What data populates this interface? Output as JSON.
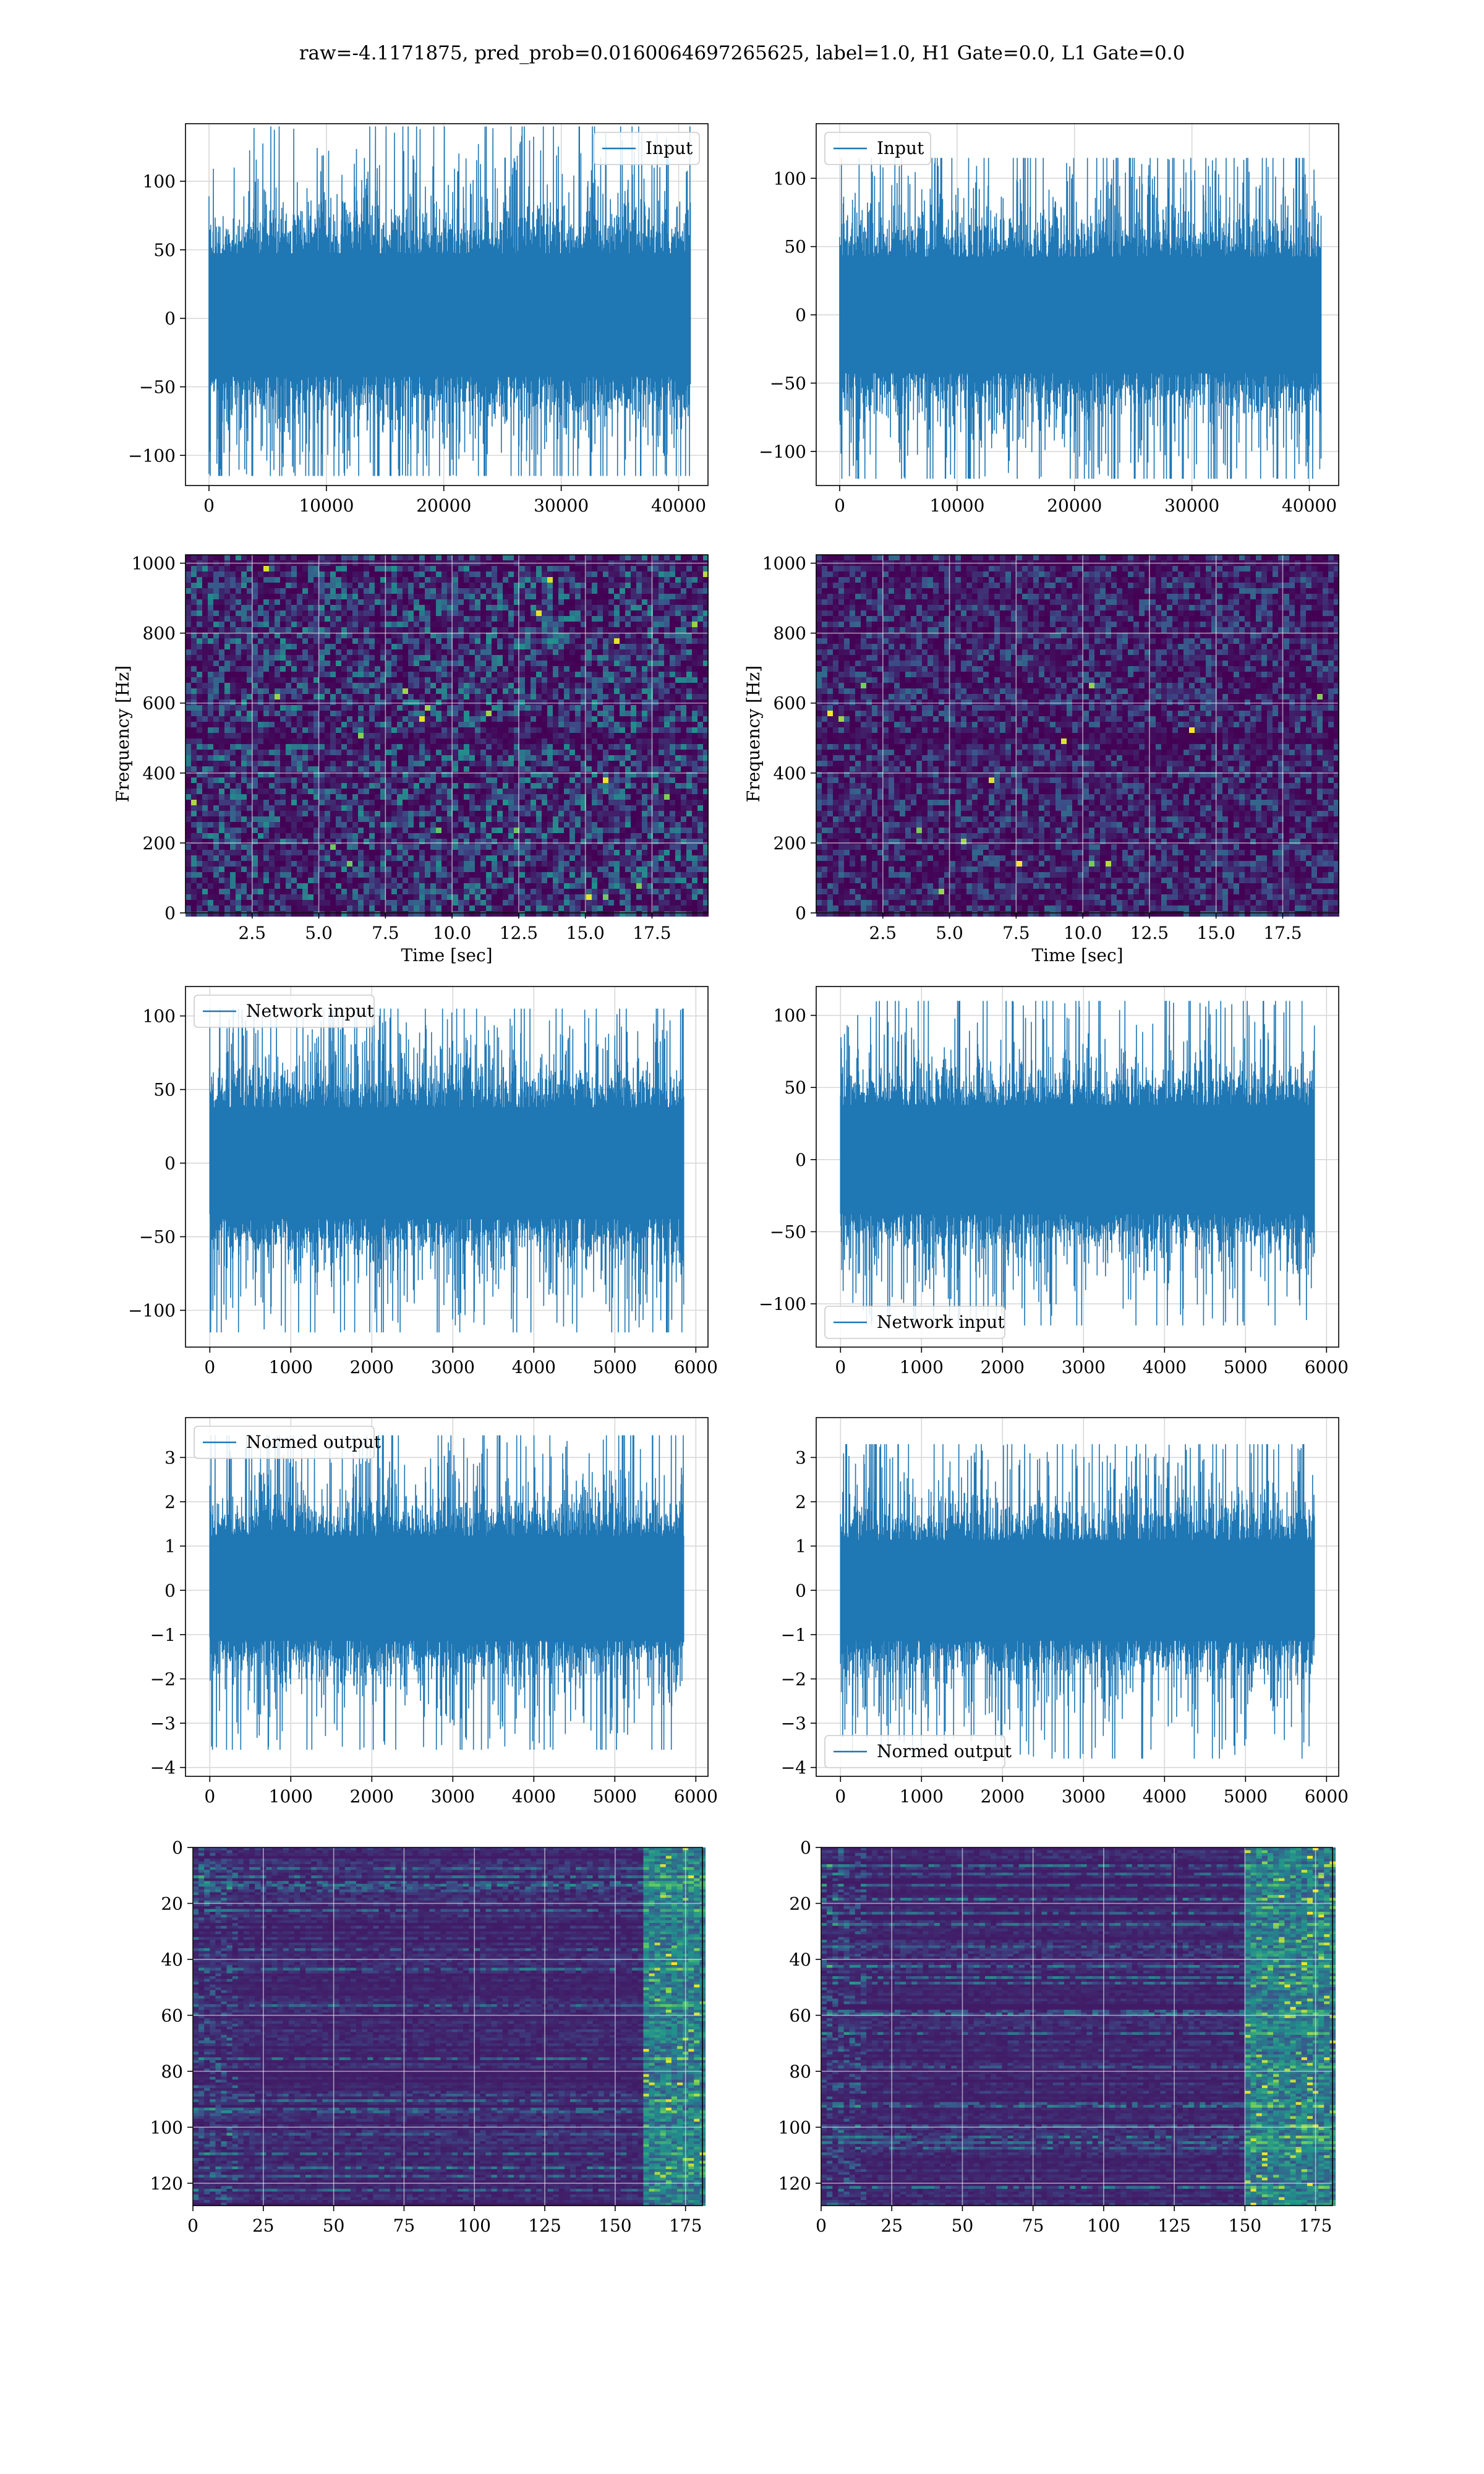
{
  "figure": {
    "title": "raw=-4.1171875, pred_prob=0.0160064697265625, label=1.0, H1 Gate=0.0, L1 Gate=0.0"
  },
  "chart_data": [
    {
      "id": "h1-input",
      "type": "line",
      "series": [
        {
          "name": "Input",
          "color": "#1f77b4"
        }
      ],
      "legend": "top-right",
      "xlim": [
        -2000,
        42500
      ],
      "ylim": [
        -122,
        142
      ],
      "xticks": [
        0,
        10000,
        20000,
        30000,
        40000
      ],
      "yticks": [
        -100,
        -50,
        0,
        50,
        100
      ],
      "band": {
        "x_start": 0,
        "x_end": 41000,
        "core": [
          -45,
          50
        ],
        "spikes": [
          -115,
          140
        ]
      },
      "grid": true
    },
    {
      "id": "l1-input",
      "type": "line",
      "series": [
        {
          "name": "Input",
          "color": "#1f77b4"
        }
      ],
      "legend": "top-left",
      "xlim": [
        -2000,
        42500
      ],
      "ylim": [
        -125,
        140
      ],
      "xticks": [
        0,
        10000,
        20000,
        30000,
        40000
      ],
      "yticks": [
        -100,
        -50,
        0,
        50,
        100
      ],
      "band": {
        "x_start": 0,
        "x_end": 41000,
        "core": [
          -45,
          45
        ],
        "spikes": [
          -120,
          115
        ]
      },
      "grid": true
    },
    {
      "id": "h1-spectrogram",
      "type": "heatmap",
      "xlabel": "Time [sec]",
      "ylabel": "Frequency [Hz]",
      "xlim": [
        0,
        19.6
      ],
      "ylim": [
        0,
        1024
      ],
      "xticks": [
        2.5,
        5.0,
        7.5,
        10.0,
        12.5,
        15.0,
        17.5
      ],
      "xtick_labels": [
        "2.5",
        "5.0",
        "7.5",
        "10.0",
        "12.5",
        "15.0",
        "17.5"
      ],
      "yticks": [
        0,
        200,
        400,
        600,
        800,
        1000
      ],
      "colormap": "viridis",
      "grid": true,
      "notes": "noise texture; dark horizontal band near 500 Hz and 1000 Hz; bright speckles"
    },
    {
      "id": "l1-spectrogram",
      "type": "heatmap",
      "xlabel": "Time [sec]",
      "ylabel": "Frequency [Hz]",
      "xlim": [
        0,
        19.6
      ],
      "ylim": [
        0,
        1024
      ],
      "xticks": [
        2.5,
        5.0,
        7.5,
        10.0,
        12.5,
        15.0,
        17.5
      ],
      "xtick_labels": [
        "2.5",
        "5.0",
        "7.5",
        "10.0",
        "12.5",
        "15.0",
        "17.5"
      ],
      "yticks": [
        0,
        200,
        400,
        600,
        800,
        1000
      ],
      "colormap": "viridis",
      "grid": true,
      "notes": "darker noise texture, few speckles"
    },
    {
      "id": "h1-network-input",
      "type": "line",
      "series": [
        {
          "name": "Network input",
          "color": "#1f77b4"
        }
      ],
      "legend": "top-left",
      "xlim": [
        -300,
        6150
      ],
      "ylim": [
        -125,
        120
      ],
      "xticks": [
        0,
        1000,
        2000,
        3000,
        4000,
        5000,
        6000
      ],
      "yticks": [
        -100,
        -50,
        0,
        50,
        100
      ],
      "band": {
        "x_start": 0,
        "x_end": 5850,
        "core": [
          -40,
          40
        ],
        "spikes": [
          -115,
          105
        ]
      },
      "grid": true
    },
    {
      "id": "l1-network-input",
      "type": "line",
      "series": [
        {
          "name": "Network input",
          "color": "#1f77b4"
        }
      ],
      "legend": "bottom-left",
      "xlim": [
        -300,
        6150
      ],
      "ylim": [
        -130,
        120
      ],
      "xticks": [
        0,
        1000,
        2000,
        3000,
        4000,
        5000,
        6000
      ],
      "yticks": [
        -100,
        -50,
        0,
        50,
        100
      ],
      "band": {
        "x_start": 0,
        "x_end": 5850,
        "core": [
          -40,
          40
        ],
        "spikes": [
          -115,
          110
        ]
      },
      "grid": true
    },
    {
      "id": "h1-normed-output",
      "type": "line",
      "series": [
        {
          "name": "Normed output",
          "color": "#1f77b4"
        }
      ],
      "legend": "top-left",
      "xlim": [
        -300,
        6150
      ],
      "ylim": [
        -4.2,
        3.9
      ],
      "xticks": [
        0,
        1000,
        2000,
        3000,
        4000,
        5000,
        6000
      ],
      "yticks": [
        -4,
        -3,
        -2,
        -1,
        0,
        1,
        2,
        3
      ],
      "band": {
        "x_start": 0,
        "x_end": 5850,
        "core": [
          -1.2,
          1.3
        ],
        "spikes": [
          -3.6,
          3.5
        ]
      },
      "grid": true
    },
    {
      "id": "l1-normed-output",
      "type": "line",
      "series": [
        {
          "name": "Normed output",
          "color": "#1f77b4"
        }
      ],
      "legend": "bottom-left",
      "xlim": [
        -300,
        6150
      ],
      "ylim": [
        -4.2,
        3.9
      ],
      "xticks": [
        0,
        1000,
        2000,
        3000,
        4000,
        5000,
        6000
      ],
      "yticks": [
        -4,
        -3,
        -2,
        -1,
        0,
        1,
        2,
        3
      ],
      "band": {
        "x_start": 0,
        "x_end": 5850,
        "core": [
          -1.2,
          1.2
        ],
        "spikes": [
          -3.8,
          3.3
        ]
      },
      "grid": true
    },
    {
      "id": "h1-feature-map",
      "type": "heatmap",
      "xlim": [
        0,
        181
      ],
      "ylim": [
        128,
        0
      ],
      "xticks": [
        0,
        25,
        50,
        75,
        100,
        125,
        150,
        175
      ],
      "yticks": [
        0,
        20,
        40,
        60,
        80,
        100,
        120
      ],
      "colormap": "viridis",
      "grid": true,
      "notes": "128 channels x 181 steps; mostly dark; bright activations near x=160-180"
    },
    {
      "id": "l1-feature-map",
      "type": "heatmap",
      "xlim": [
        0,
        181
      ],
      "ylim": [
        128,
        0
      ],
      "xticks": [
        0,
        25,
        50,
        75,
        100,
        125,
        150,
        175
      ],
      "yticks": [
        0,
        20,
        40,
        60,
        80,
        100,
        120
      ],
      "colormap": "viridis",
      "grid": true,
      "notes": "128 channels x 181 steps; vertical boundary near x=150; bright activations right of it"
    }
  ]
}
